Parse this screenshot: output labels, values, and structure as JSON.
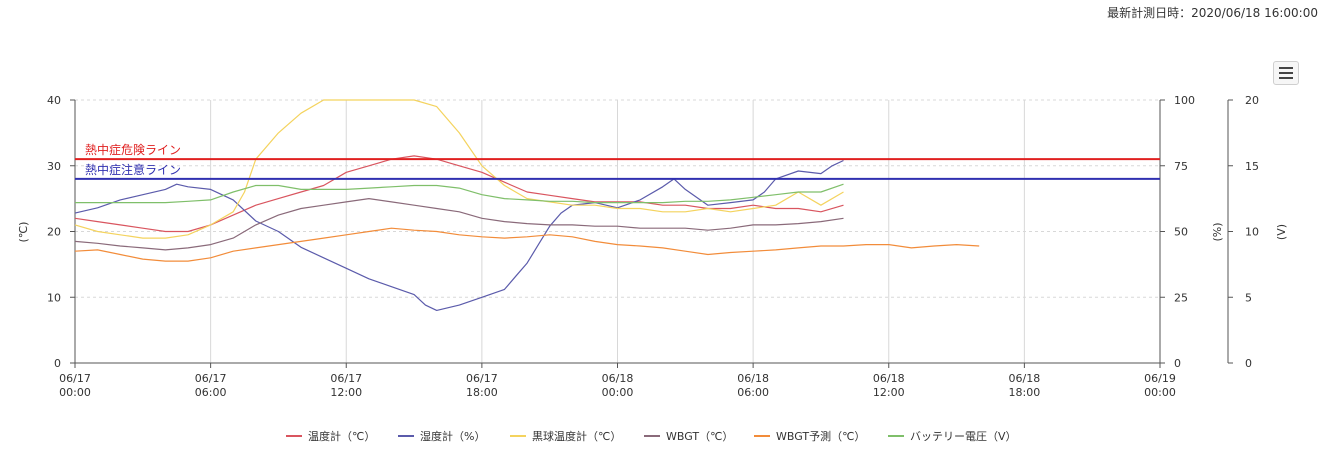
{
  "header": {
    "timestamp": "最新計測日時：2020/06/18 16:00:00"
  },
  "menu": {
    "icon": "hamburger-menu-icon"
  },
  "chart_data": {
    "type": "line",
    "x_ticks": [
      {
        "x": 0,
        "l1": "06/17",
        "l2": "00:00"
      },
      {
        "x": 6,
        "l1": "06/17",
        "l2": "06:00"
      },
      {
        "x": 12,
        "l1": "06/17",
        "l2": "12:00"
      },
      {
        "x": 18,
        "l1": "06/17",
        "l2": "18:00"
      },
      {
        "x": 24,
        "l1": "06/18",
        "l2": "00:00"
      },
      {
        "x": 30,
        "l1": "06/18",
        "l2": "06:00"
      },
      {
        "x": 36,
        "l1": "06/18",
        "l2": "12:00"
      },
      {
        "x": 42,
        "l1": "06/18",
        "l2": "18:00"
      },
      {
        "x": 48,
        "l1": "06/19",
        "l2": "00:00"
      }
    ],
    "xlim": [
      0,
      48
    ],
    "axes": {
      "temp": {
        "label": "(℃)",
        "ylim": [
          0,
          40
        ],
        "ticks": [
          "0",
          "10",
          "20",
          "30",
          "40"
        ]
      },
      "humidity": {
        "label": "(%)",
        "ylim": [
          0,
          100
        ],
        "ticks": [
          "0",
          "25",
          "50",
          "75",
          "100"
        ]
      },
      "voltage": {
        "label": "(V)",
        "ylim": [
          0,
          20
        ],
        "ticks": [
          "0",
          "5",
          "10",
          "15",
          "20"
        ]
      }
    },
    "reference_lines": [
      {
        "label": "熱中症危険ライン",
        "y": 31,
        "color": "#e02020"
      },
      {
        "label": "熱中症注意ライン",
        "y": 28,
        "color": "#3030b0"
      }
    ],
    "series": [
      {
        "name": "温度計（℃）",
        "axis": "temp",
        "color": "#d9555f",
        "points": [
          [
            0,
            22
          ],
          [
            1,
            21.5
          ],
          [
            2,
            21
          ],
          [
            3,
            20.5
          ],
          [
            4,
            20
          ],
          [
            5,
            20
          ],
          [
            6,
            21
          ],
          [
            7,
            22.5
          ],
          [
            8,
            24
          ],
          [
            9,
            25
          ],
          [
            10,
            26
          ],
          [
            11,
            27
          ],
          [
            12,
            29
          ],
          [
            13,
            30
          ],
          [
            14,
            31
          ],
          [
            15,
            31.5
          ],
          [
            16,
            31
          ],
          [
            17,
            30
          ],
          [
            18,
            29
          ],
          [
            19,
            27.5
          ],
          [
            20,
            26
          ],
          [
            21,
            25.5
          ],
          [
            22,
            25
          ],
          [
            23,
            24.5
          ],
          [
            24,
            24.5
          ],
          [
            25,
            24.5
          ],
          [
            26,
            24
          ],
          [
            27,
            24
          ],
          [
            28,
            23.5
          ],
          [
            29,
            23.5
          ],
          [
            30,
            24
          ],
          [
            31,
            23.5
          ],
          [
            32,
            23.5
          ],
          [
            33,
            23
          ],
          [
            34,
            24
          ]
        ]
      },
      {
        "name": "湿度計（%）",
        "axis": "humidity",
        "color": "#5b5bab",
        "points": [
          [
            0,
            57
          ],
          [
            1,
            59
          ],
          [
            2,
            62
          ],
          [
            3,
            64
          ],
          [
            4,
            66
          ],
          [
            4.5,
            68
          ],
          [
            5,
            67
          ],
          [
            6,
            66
          ],
          [
            7,
            62
          ],
          [
            8,
            54
          ],
          [
            9,
            50
          ],
          [
            10,
            44
          ],
          [
            11,
            40
          ],
          [
            12,
            36
          ],
          [
            13,
            32
          ],
          [
            14,
            29
          ],
          [
            15,
            26
          ],
          [
            15.5,
            22
          ],
          [
            16,
            20
          ],
          [
            17,
            22
          ],
          [
            18,
            25
          ],
          [
            19,
            28
          ],
          [
            19.5,
            33
          ],
          [
            20,
            38
          ],
          [
            20.5,
            45
          ],
          [
            21,
            52
          ],
          [
            21.5,
            57
          ],
          [
            22,
            60
          ],
          [
            23,
            61
          ],
          [
            24,
            59
          ],
          [
            25,
            62
          ],
          [
            26,
            67
          ],
          [
            26.5,
            70
          ],
          [
            27,
            66
          ],
          [
            28,
            60
          ],
          [
            29,
            61
          ],
          [
            30,
            62
          ],
          [
            30.5,
            65
          ],
          [
            31,
            70
          ],
          [
            32,
            73
          ],
          [
            33,
            72
          ],
          [
            33.5,
            75
          ],
          [
            34,
            77
          ]
        ]
      },
      {
        "name": "黒球温度計（℃）",
        "axis": "temp",
        "color": "#f4d35e",
        "points": [
          [
            0,
            21
          ],
          [
            1,
            20
          ],
          [
            2,
            19.5
          ],
          [
            3,
            19
          ],
          [
            4,
            19
          ],
          [
            5,
            19.5
          ],
          [
            6,
            21
          ],
          [
            7,
            23
          ],
          [
            7.5,
            26
          ],
          [
            8,
            31
          ],
          [
            9,
            35
          ],
          [
            10,
            38
          ],
          [
            11,
            40
          ],
          [
            12,
            41
          ],
          [
            13,
            42
          ],
          [
            14,
            43
          ],
          [
            15,
            41
          ],
          [
            16,
            39
          ],
          [
            17,
            35
          ],
          [
            18,
            30
          ],
          [
            19,
            27
          ],
          [
            20,
            25
          ],
          [
            21,
            24.5
          ],
          [
            22,
            24
          ],
          [
            23,
            24
          ],
          [
            24,
            23.5
          ],
          [
            25,
            23.5
          ],
          [
            26,
            23
          ],
          [
            27,
            23
          ],
          [
            28,
            23.5
          ],
          [
            29,
            23
          ],
          [
            30,
            23.5
          ],
          [
            31,
            24
          ],
          [
            32,
            26
          ],
          [
            33,
            24
          ],
          [
            34,
            26
          ]
        ]
      },
      {
        "name": "WBGT（℃）",
        "axis": "temp",
        "color": "#8a6a7a",
        "points": [
          [
            0,
            18.5
          ],
          [
            1,
            18.2
          ],
          [
            2,
            17.8
          ],
          [
            3,
            17.5
          ],
          [
            4,
            17.2
          ],
          [
            5,
            17.5
          ],
          [
            6,
            18
          ],
          [
            7,
            19
          ],
          [
            8,
            21
          ],
          [
            9,
            22.5
          ],
          [
            10,
            23.5
          ],
          [
            11,
            24
          ],
          [
            12,
            24.5
          ],
          [
            13,
            25
          ],
          [
            14,
            24.5
          ],
          [
            15,
            24
          ],
          [
            16,
            23.5
          ],
          [
            17,
            23
          ],
          [
            18,
            22
          ],
          [
            19,
            21.5
          ],
          [
            20,
            21.2
          ],
          [
            21,
            21
          ],
          [
            22,
            21
          ],
          [
            23,
            20.8
          ],
          [
            24,
            20.8
          ],
          [
            25,
            20.5
          ],
          [
            26,
            20.5
          ],
          [
            27,
            20.5
          ],
          [
            28,
            20.2
          ],
          [
            29,
            20.5
          ],
          [
            30,
            21
          ],
          [
            31,
            21
          ],
          [
            32,
            21.2
          ],
          [
            33,
            21.5
          ],
          [
            34,
            22
          ]
        ]
      },
      {
        "name": "WBGT予測（℃）",
        "axis": "temp",
        "color": "#f28c3a",
        "points": [
          [
            0,
            17
          ],
          [
            1,
            17.2
          ],
          [
            2,
            16.5
          ],
          [
            3,
            15.8
          ],
          [
            4,
            15.5
          ],
          [
            5,
            15.5
          ],
          [
            6,
            16
          ],
          [
            7,
            17
          ],
          [
            8,
            17.5
          ],
          [
            9,
            18
          ],
          [
            10,
            18.5
          ],
          [
            11,
            19
          ],
          [
            12,
            19.5
          ],
          [
            13,
            20
          ],
          [
            14,
            20.5
          ],
          [
            15,
            20.2
          ],
          [
            16,
            20
          ],
          [
            17,
            19.5
          ],
          [
            18,
            19.2
          ],
          [
            19,
            19
          ],
          [
            20,
            19.2
          ],
          [
            21,
            19.5
          ],
          [
            22,
            19.2
          ],
          [
            23,
            18.5
          ],
          [
            24,
            18
          ],
          [
            25,
            17.8
          ],
          [
            26,
            17.5
          ],
          [
            27,
            17
          ],
          [
            28,
            16.5
          ],
          [
            29,
            16.8
          ],
          [
            30,
            17
          ],
          [
            31,
            17.2
          ],
          [
            32,
            17.5
          ],
          [
            33,
            17.8
          ],
          [
            34,
            17.8
          ],
          [
            35,
            18
          ],
          [
            36,
            18
          ],
          [
            37,
            17.5
          ],
          [
            38,
            17.8
          ],
          [
            39,
            18
          ],
          [
            40,
            17.8
          ]
        ]
      },
      {
        "name": "バッテリー電圧（V）",
        "axis": "voltage",
        "color": "#7fbf6a",
        "points": [
          [
            0,
            12.2
          ],
          [
            1,
            12.2
          ],
          [
            2,
            12.2
          ],
          [
            3,
            12.2
          ],
          [
            4,
            12.2
          ],
          [
            5,
            12.3
          ],
          [
            6,
            12.4
          ],
          [
            7,
            13
          ],
          [
            8,
            13.5
          ],
          [
            9,
            13.5
          ],
          [
            10,
            13.2
          ],
          [
            11,
            13.2
          ],
          [
            12,
            13.2
          ],
          [
            13,
            13.3
          ],
          [
            14,
            13.4
          ],
          [
            15,
            13.5
          ],
          [
            16,
            13.5
          ],
          [
            17,
            13.3
          ],
          [
            18,
            12.8
          ],
          [
            19,
            12.5
          ],
          [
            20,
            12.4
          ],
          [
            21,
            12.3
          ],
          [
            22,
            12.3
          ],
          [
            23,
            12.2
          ],
          [
            24,
            12.2
          ],
          [
            25,
            12.2
          ],
          [
            26,
            12.2
          ],
          [
            27,
            12.3
          ],
          [
            28,
            12.3
          ],
          [
            29,
            12.4
          ],
          [
            30,
            12.6
          ],
          [
            31,
            12.8
          ],
          [
            32,
            13
          ],
          [
            33,
            13
          ],
          [
            34,
            13.6
          ]
        ]
      }
    ]
  }
}
